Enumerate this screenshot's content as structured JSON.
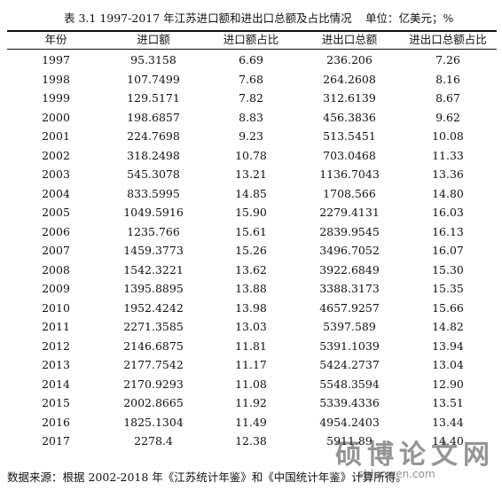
{
  "table": {
    "caption": "表 3.1 1997-2017 年江苏进口额和进出口总额及占比情况",
    "unit": "单位：亿美元；%",
    "columns": [
      "年份",
      "进口额",
      "进口额占比",
      "进出口总额",
      "进出口总额占比"
    ],
    "rows": [
      [
        "1997",
        "95.3158",
        "6.69",
        "236.206",
        "7.26"
      ],
      [
        "1998",
        "107.7499",
        "7.68",
        "264.2608",
        "8.16"
      ],
      [
        "1999",
        "129.5171",
        "7.82",
        "312.6139",
        "8.67"
      ],
      [
        "2000",
        "198.6857",
        "8.83",
        "456.3836",
        "9.62"
      ],
      [
        "2001",
        "224.7698",
        "9.23",
        "513.5451",
        "10.08"
      ],
      [
        "2002",
        "318.2498",
        "10.78",
        "703.0468",
        "11.33"
      ],
      [
        "2003",
        "545.3078",
        "13.21",
        "1136.7043",
        "13.36"
      ],
      [
        "2004",
        "833.5995",
        "14.85",
        "1708.566",
        "14.80"
      ],
      [
        "2005",
        "1049.5916",
        "15.90",
        "2279.4131",
        "16.03"
      ],
      [
        "2006",
        "1235.766",
        "15.61",
        "2839.9545",
        "16.13"
      ],
      [
        "2007",
        "1459.3773",
        "15.26",
        "3496.7052",
        "16.07"
      ],
      [
        "2008",
        "1542.3221",
        "13.62",
        "3922.6849",
        "15.30"
      ],
      [
        "2009",
        "1395.8895",
        "13.88",
        "3388.3173",
        "15.35"
      ],
      [
        "2010",
        "1952.4242",
        "13.98",
        "4657.9257",
        "15.66"
      ],
      [
        "2011",
        "2271.3585",
        "13.03",
        "5397.589",
        "14.82"
      ],
      [
        "2012",
        "2146.6875",
        "11.81",
        "5391.1039",
        "13.94"
      ],
      [
        "2013",
        "2177.7542",
        "11.17",
        "5424.2737",
        "13.04"
      ],
      [
        "2014",
        "2170.9293",
        "11.08",
        "5548.3594",
        "12.90"
      ],
      [
        "2015",
        "2002.8665",
        "11.92",
        "5339.4336",
        "13.51"
      ],
      [
        "2016",
        "1825.1304",
        "11.49",
        "4954.2403",
        "13.44"
      ],
      [
        "2017",
        "2278.4",
        "12.38",
        "5911.89",
        "14.40"
      ]
    ]
  },
  "source_note": "数据来源：根据 2002-2018 年《江苏统计年鉴》和《中国统计年鉴》计算所得。",
  "watermark": {
    "main": "硕博论文网",
    "sub": "sblunwen.com"
  }
}
